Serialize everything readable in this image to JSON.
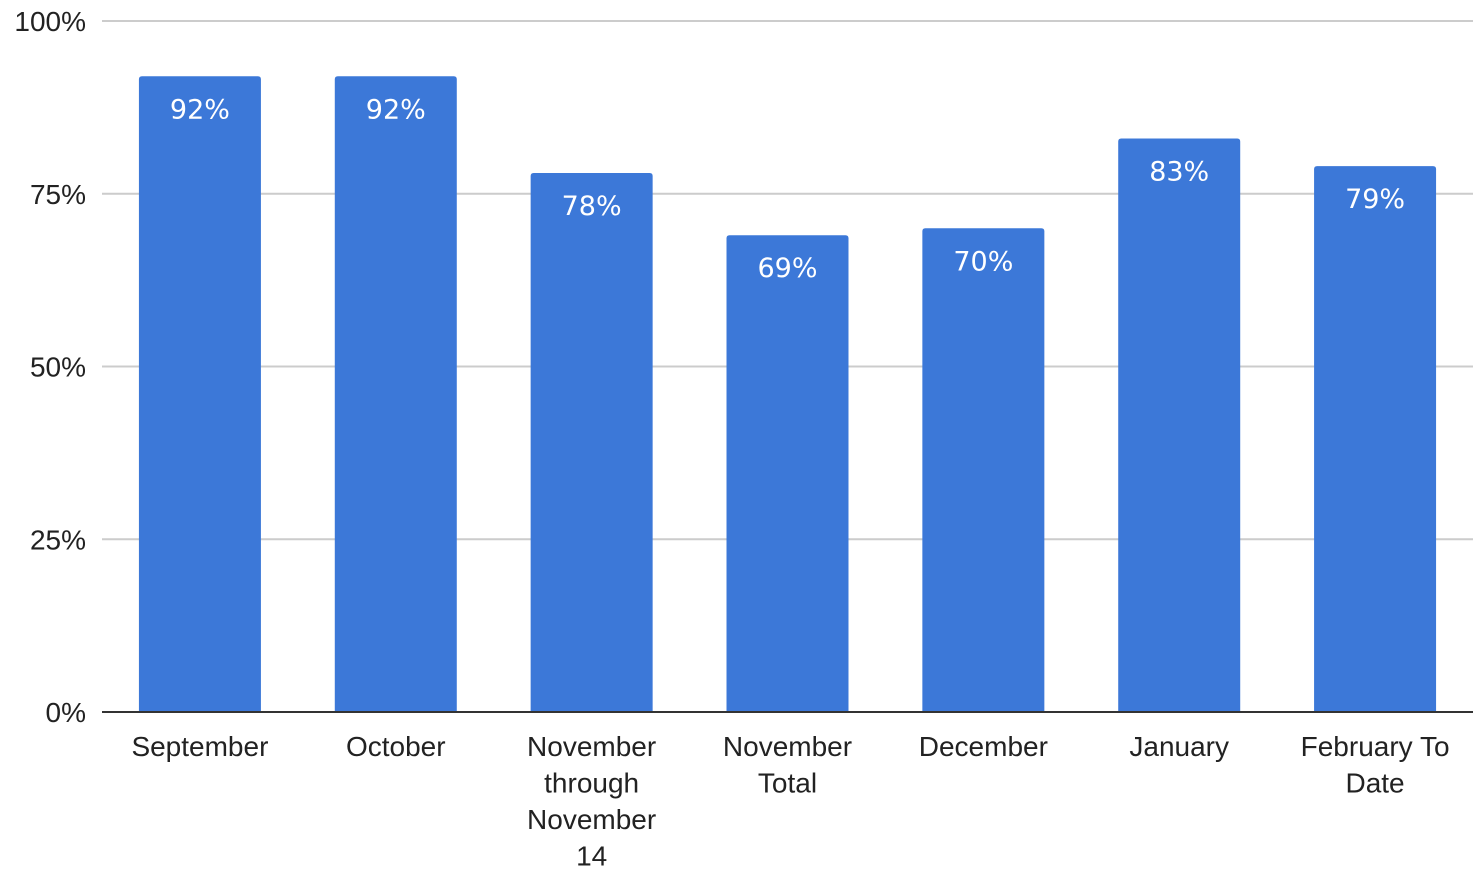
{
  "chart_data": {
    "type": "bar",
    "categories": [
      [
        "September"
      ],
      [
        "October"
      ],
      [
        "November",
        "through",
        "November",
        "14"
      ],
      [
        "November",
        "Total"
      ],
      [
        "December"
      ],
      [
        "January"
      ],
      [
        "February To",
        "Date"
      ]
    ],
    "values": [
      92,
      92,
      78,
      69,
      70,
      83,
      79
    ],
    "data_labels": [
      "92%",
      "92%",
      "78%",
      "69%",
      "70%",
      "83%",
      "79%"
    ],
    "ylim": [
      0,
      100
    ],
    "y_ticks": [
      0,
      25,
      50,
      75,
      100
    ],
    "y_tick_labels": [
      "0%",
      "25%",
      "50%",
      "75%",
      "100%"
    ],
    "grid": true,
    "legend": "none",
    "colors": {
      "bar": "#3c78d8",
      "grid": "#cccccc",
      "axis": "#333333",
      "text": "#222222",
      "data_label": "#ffffff"
    }
  }
}
